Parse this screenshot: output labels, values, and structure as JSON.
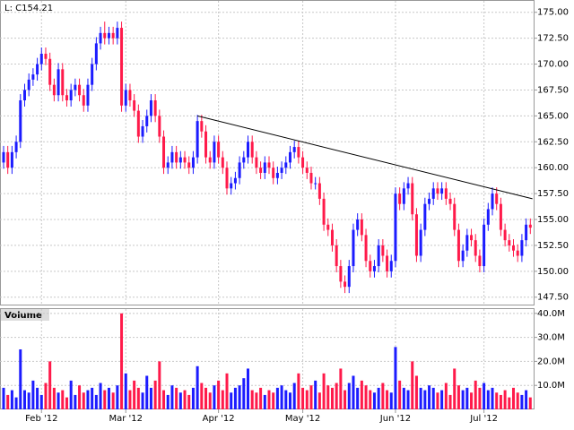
{
  "chart_data": [
    {
      "type": "candlestick",
      "title": "L: C154.21",
      "up_color": "#1c1cff",
      "down_color": "#ff1a4a",
      "ylim": [
        146.7,
        176.1
      ],
      "yticks": [
        {
          "value": 147.5,
          "label": "147.50"
        },
        {
          "value": 150,
          "label": "150.00"
        },
        {
          "value": 152.5,
          "label": "152.50"
        },
        {
          "value": 155,
          "label": "155.00"
        },
        {
          "value": 157.5,
          "label": "157.50"
        },
        {
          "value": 160,
          "label": "160.00"
        },
        {
          "value": 162.5,
          "label": "162.50"
        },
        {
          "value": 165,
          "label": "165.00"
        },
        {
          "value": 167.5,
          "label": "167.50"
        },
        {
          "value": 170,
          "label": "170.00"
        },
        {
          "value": 172.5,
          "label": "172.50"
        },
        {
          "value": 175,
          "label": "175.00"
        }
      ],
      "grid": true,
      "trendline": {
        "x": [
          46,
          125.5
        ],
        "y": [
          165,
          157
        ]
      },
      "open": [
        160.5,
        161.5,
        160,
        161.5,
        162.5,
        166.5,
        167.5,
        168.5,
        169,
        170,
        171,
        170.5,
        168,
        167,
        169.5,
        167,
        166.5,
        167.5,
        168,
        167,
        166,
        168,
        170,
        172,
        173,
        172.5,
        173,
        172.5,
        173.5,
        166,
        167.5,
        166.5,
        165.5,
        163,
        164,
        165,
        166.5,
        165,
        163,
        160,
        160.5,
        161.5,
        160.5,
        161,
        160.5,
        160,
        161,
        164.5,
        163.5,
        161,
        160.5,
        162.5,
        161,
        160,
        158,
        158.5,
        159,
        160.5,
        161,
        162.5,
        161,
        160,
        159.5,
        160.5,
        160,
        159,
        159.5,
        160,
        160.5,
        161.5,
        162,
        161,
        160,
        159.5,
        158.5,
        158.5,
        157,
        154.5,
        154,
        152.5,
        150.5,
        149,
        148.5,
        150.5,
        154,
        155,
        153.5,
        151,
        150,
        150.5,
        152.5,
        151.5,
        150,
        151,
        157.5,
        156.5,
        158,
        158.5,
        155.5,
        151.5,
        154,
        156.5,
        157,
        158,
        157.5,
        158,
        157,
        156.5,
        154,
        151,
        152,
        153.5,
        153,
        151.5,
        150.5,
        154.5,
        156,
        157.5,
        156.5,
        154,
        153,
        152.5,
        152,
        151.5,
        153,
        154.5
      ],
      "high": [
        162.1,
        162.1,
        162.1,
        163.1,
        167.1,
        168.1,
        169.1,
        169.6,
        170.6,
        171.6,
        171.6,
        171.1,
        168.6,
        170.1,
        170.1,
        167.6,
        168.1,
        168.6,
        168.6,
        167.6,
        168.6,
        170.6,
        172.6,
        173.6,
        174.1,
        173.6,
        173.6,
        174.1,
        174.1,
        168.1,
        168.1,
        167.1,
        166.1,
        164.6,
        165.6,
        167.1,
        167.1,
        165.6,
        163.6,
        161.1,
        162.1,
        162.1,
        161.6,
        161.6,
        161.1,
        161.6,
        165.1,
        165.1,
        164.1,
        161.6,
        163.1,
        163.1,
        161.6,
        160.6,
        159.1,
        159.6,
        161.1,
        161.6,
        163.1,
        163.1,
        161.6,
        160.6,
        161.1,
        161.1,
        160.6,
        160.1,
        160.6,
        161.1,
        162.1,
        162.6,
        162.6,
        161.6,
        160.6,
        160.1,
        159.1,
        159.1,
        157.6,
        155.1,
        154.6,
        153.1,
        151.1,
        149.6,
        151.1,
        154.6,
        155.6,
        155.6,
        154.1,
        151.6,
        151.1,
        153.1,
        153.1,
        152.1,
        151.6,
        158.1,
        158.1,
        158.6,
        159.1,
        159.1,
        156.1,
        154.6,
        157.1,
        157.6,
        158.6,
        158.6,
        158.6,
        158.6,
        157.6,
        157.1,
        154.6,
        152.6,
        154.1,
        154.1,
        153.6,
        152.1,
        155.1,
        156.6,
        158.1,
        158.1,
        157.1,
        154.6,
        153.6,
        153.1,
        152.6,
        153.6,
        155.1,
        155.1
      ],
      "low": [
        159.9,
        159.4,
        159.4,
        160.9,
        161.9,
        165.9,
        166.9,
        167.9,
        168.4,
        169.4,
        169.9,
        167.4,
        166.4,
        166.4,
        166.4,
        165.9,
        165.9,
        166.9,
        166.4,
        165.4,
        165.4,
        167.4,
        169.4,
        171.4,
        171.9,
        171.9,
        171.9,
        171.9,
        165.4,
        165.4,
        165.9,
        164.9,
        162.4,
        162.4,
        163.4,
        164.4,
        164.4,
        162.4,
        159.4,
        159.4,
        159.9,
        159.9,
        159.9,
        159.9,
        159.4,
        159.4,
        160.4,
        162.9,
        160.4,
        159.9,
        159.9,
        160.4,
        159.4,
        157.4,
        157.4,
        157.9,
        158.4,
        159.9,
        160.4,
        160.4,
        159.4,
        158.9,
        158.9,
        159.4,
        158.4,
        158.4,
        158.9,
        159.4,
        159.9,
        160.9,
        160.4,
        159.4,
        158.9,
        157.9,
        157.9,
        156.4,
        153.9,
        153.4,
        151.9,
        149.9,
        148.4,
        147.9,
        147.9,
        149.9,
        153.4,
        152.9,
        150.4,
        149.4,
        149.4,
        149.9,
        150.9,
        149.4,
        149.4,
        150.4,
        155.9,
        155.9,
        157.4,
        154.9,
        150.9,
        150.9,
        153.4,
        155.9,
        156.4,
        156.9,
        156.9,
        156.4,
        155.9,
        153.4,
        150.4,
        150.4,
        151.4,
        152.4,
        150.9,
        149.9,
        149.9,
        153.9,
        155.4,
        155.9,
        153.4,
        152.4,
        151.9,
        151.4,
        150.9,
        150.9,
        152.4,
        153.6
      ],
      "close": [
        161.5,
        160,
        161.5,
        162.5,
        166.5,
        167.5,
        168.5,
        169,
        170,
        171,
        170.5,
        168,
        167,
        169.5,
        167,
        166.5,
        167.5,
        168,
        167,
        166,
        168,
        170,
        172,
        173,
        172.5,
        173,
        172.5,
        173.5,
        166,
        167.5,
        166.5,
        165.5,
        163,
        164,
        165,
        166.5,
        165,
        163,
        160,
        160.5,
        161.5,
        160.5,
        161,
        160.5,
        160,
        161,
        164.5,
        163.5,
        161,
        160.5,
        162.5,
        161,
        160,
        158,
        158.5,
        159,
        160.5,
        161,
        162.5,
        161,
        160,
        159.5,
        160.5,
        160,
        159,
        159.5,
        160,
        160.5,
        161.5,
        162,
        161,
        160,
        159.5,
        158.5,
        158.5,
        157,
        154.5,
        154,
        152.5,
        150.5,
        149,
        148.5,
        150.5,
        154,
        155,
        153.5,
        151,
        150,
        150.5,
        152.5,
        151.5,
        150,
        151,
        157.5,
        156.5,
        158,
        158.5,
        155.5,
        151.5,
        154,
        156.5,
        157,
        158,
        157.5,
        158,
        157,
        156.5,
        154,
        151,
        152,
        153.5,
        153,
        151.5,
        150.5,
        154.5,
        156,
        157.5,
        156.5,
        154,
        153,
        152.5,
        152,
        151.5,
        153,
        154.5,
        154.21
      ]
    },
    {
      "type": "bar",
      "title": "Volume",
      "ylim": [
        0,
        41.8
      ],
      "yticks": [
        {
          "value": 10,
          "label": "10.0M"
        },
        {
          "value": 20,
          "label": "20.0M"
        },
        {
          "value": 30,
          "label": "30.0M"
        },
        {
          "value": 40,
          "label": "40.0M"
        }
      ],
      "xlim": [
        -0.85,
        126
      ],
      "xticks": [
        {
          "value": 9,
          "label": "Feb '12"
        },
        {
          "value": 29,
          "label": "Mar '12"
        },
        {
          "value": 51,
          "label": "Apr '12"
        },
        {
          "value": 71,
          "label": "May '12"
        },
        {
          "value": 93,
          "label": "Jun '12"
        },
        {
          "value": 114,
          "label": "Jul '12"
        }
      ],
      "grid": true,
      "values": [
        9,
        6,
        8,
        5,
        25,
        8,
        7,
        12,
        9,
        6,
        11,
        20,
        9,
        7,
        8,
        5,
        12,
        6,
        10,
        7,
        8,
        9,
        6,
        11,
        8,
        9,
        7,
        10,
        40,
        15,
        8,
        12,
        9,
        7,
        14,
        9,
        12,
        20,
        8,
        6,
        10,
        9,
        7,
        8,
        6,
        9,
        18,
        11,
        9,
        7,
        10,
        12,
        8,
        15,
        7,
        9,
        10,
        13,
        17,
        8,
        7,
        9,
        6,
        8,
        7,
        9,
        10,
        8,
        7,
        11,
        15,
        9,
        8,
        10,
        12,
        7,
        15,
        10,
        9,
        11,
        17,
        8,
        11,
        14,
        9,
        12,
        10,
        8,
        7,
        9,
        11,
        8,
        7,
        26,
        12,
        9,
        8,
        20,
        14,
        9,
        8,
        10,
        9,
        7,
        8,
        11,
        6,
        17,
        10,
        8,
        9,
        7,
        12,
        9,
        11,
        8,
        9,
        7,
        6,
        8,
        5,
        9,
        7,
        6,
        8,
        5
      ]
    }
  ]
}
